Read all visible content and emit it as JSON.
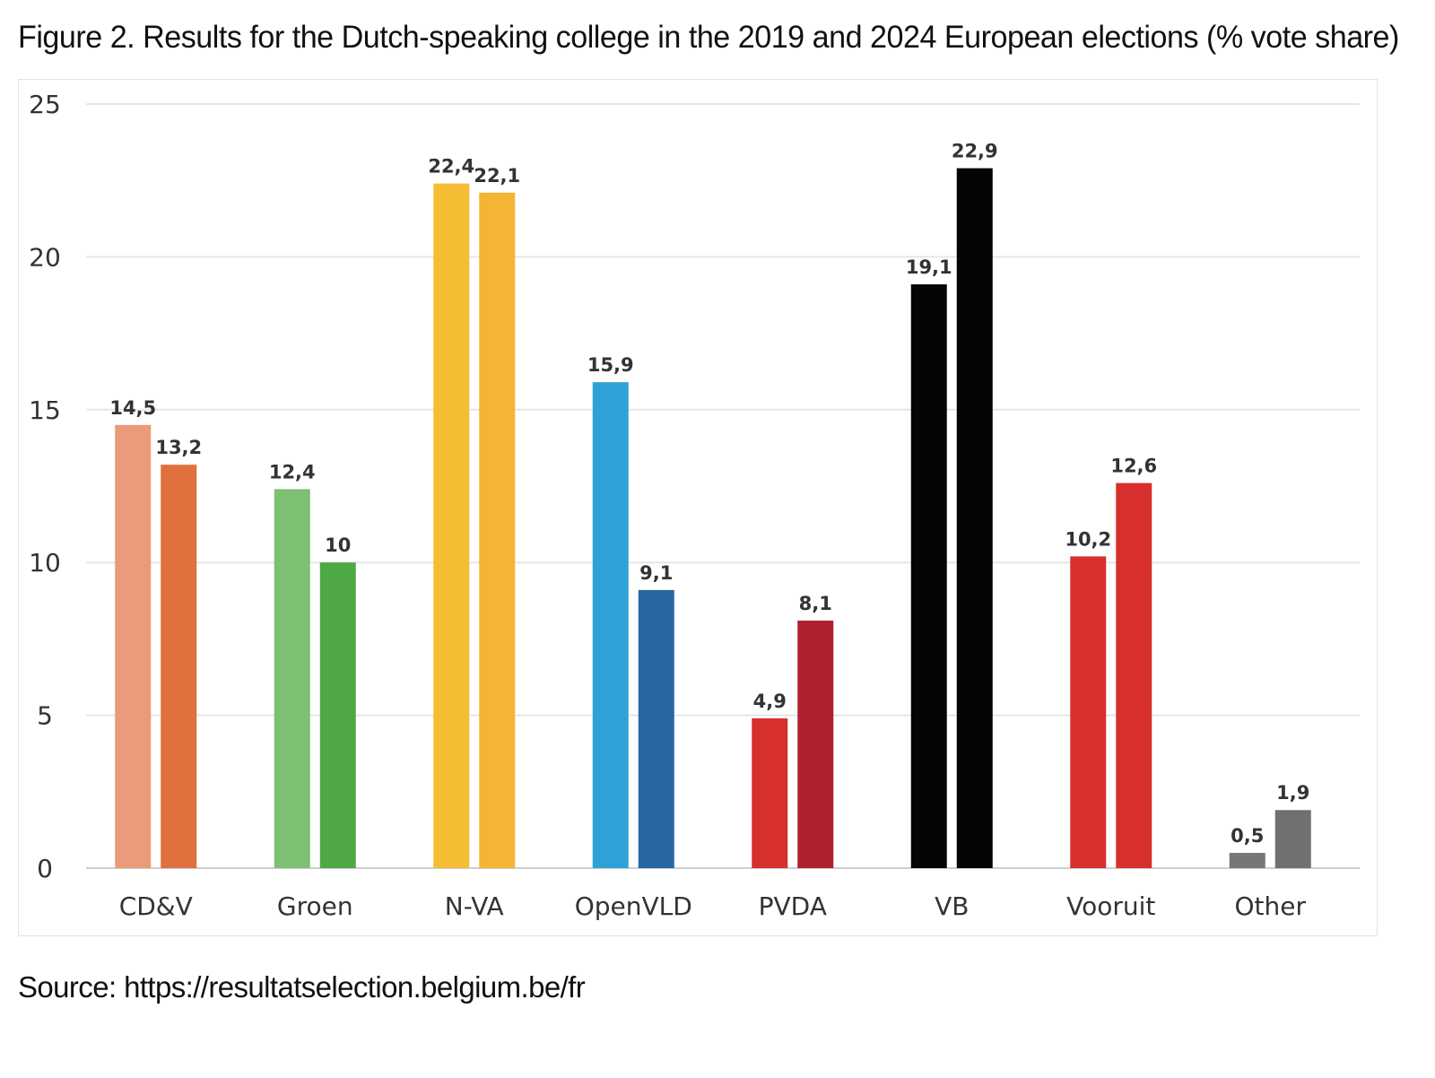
{
  "figure": {
    "title": "Figure 2. Results for the Dutch-speaking college in the 2019 and 2024 European elections (% vote share)",
    "source": "Source: https://resultatselection.belgium.be/fr"
  },
  "chart_data": {
    "type": "bar",
    "categories": [
      "CD&V",
      "Groen",
      "N-VA",
      "OpenVLD",
      "PVDA",
      "VB",
      "Vooruit",
      "Other"
    ],
    "series": [
      {
        "values": [
          14.5,
          12.4,
          22.4,
          15.9,
          4.9,
          19.1,
          10.2,
          0.5
        ],
        "labels": [
          "14,5",
          "12,4",
          "22,4",
          "15,9",
          "4,9",
          "19,1",
          "10,2",
          "0,5"
        ],
        "colors": [
          "#e99b7a",
          "#7dbf73",
          "#f4bd34",
          "#2ea2d6",
          "#d8302d",
          "#050505",
          "#d8302d",
          "#777777"
        ]
      },
      {
        "values": [
          13.2,
          10,
          22.1,
          9.1,
          8.1,
          22.9,
          12.6,
          1.9
        ],
        "labels": [
          "13,2",
          "10",
          "22,1",
          "9,1",
          "8,1",
          "22,9",
          "12,6",
          "1,9"
        ],
        "colors": [
          "#e0703e",
          "#4ea843",
          "#f4b535",
          "#2666a3",
          "#b0202c",
          "#050505",
          "#d8302d",
          "#707070"
        ]
      }
    ],
    "yticks": [
      "0",
      "5",
      "10",
      "15",
      "20",
      "25"
    ],
    "ylim": [
      0,
      25
    ],
    "grid": true,
    "legend": "none"
  }
}
